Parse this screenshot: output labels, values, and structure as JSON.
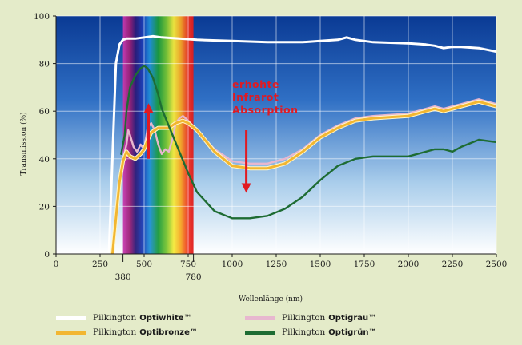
{
  "chart_data": {
    "type": "line",
    "title": "",
    "xlabel": "Wellenlänge (nm)",
    "ylabel": "Transmission (%)",
    "xlim": [
      0,
      2500
    ],
    "ylim": [
      0,
      100
    ],
    "x_ticks": [
      "0",
      "250",
      "500",
      "750",
      "1000",
      "1250",
      "1500",
      "1750",
      "2000",
      "2250",
      "2500"
    ],
    "x_ticks_extra": [
      "380",
      "780"
    ],
    "y_ticks": [
      "0",
      "20",
      "40",
      "60",
      "80",
      "100"
    ],
    "grid": true,
    "visible_spectrum_nm": [
      380,
      780
    ],
    "annotation": {
      "lines": [
        "erhöhte",
        "Infrarot",
        "Absorption"
      ],
      "color": "#e11a22"
    },
    "legend_brand": "Pilkington",
    "series": [
      {
        "name": "Optiwhite™",
        "color": "#ffffff",
        "x": [
          300,
          320,
          340,
          360,
          380,
          400,
          450,
          500,
          550,
          600,
          700,
          800,
          1000,
          1200,
          1400,
          1500,
          1600,
          1650,
          1700,
          1800,
          2000,
          2100,
          2150,
          2200,
          2250,
          2300,
          2400,
          2500
        ],
        "y": [
          0,
          40,
          80,
          88,
          90,
          90.5,
          90.5,
          91,
          91.5,
          91,
          90.5,
          90,
          89.5,
          89,
          89,
          89.5,
          90,
          91,
          90,
          89,
          88.5,
          88,
          87.5,
          86.5,
          87,
          87,
          86.5,
          85
        ]
      },
      {
        "name": "Optigrau™",
        "color": "#e7b7cf",
        "x": [
          380,
          400,
          410,
          420,
          440,
          460,
          480,
          500,
          520,
          540,
          560,
          580,
          600,
          620,
          640,
          660,
          680,
          700,
          720,
          750,
          800,
          900,
          1000,
          1100,
          1200,
          1300,
          1400,
          1500,
          1600,
          1700,
          1800,
          2000,
          2100,
          2150,
          2200,
          2250,
          2300,
          2400,
          2500
        ],
        "y": [
          40,
          46,
          52,
          50,
          45,
          43,
          46,
          44,
          53,
          55,
          52,
          46,
          42,
          44,
          43,
          48,
          55,
          57,
          58,
          56,
          52,
          44,
          39,
          38,
          38,
          40,
          44,
          50,
          54,
          57,
          58,
          59,
          61,
          62,
          61,
          62,
          63,
          65,
          63
        ]
      },
      {
        "name": "Optibronze™",
        "color": "#f2b631",
        "x": [
          320,
          340,
          360,
          380,
          400,
          420,
          450,
          480,
          500,
          520,
          540,
          560,
          580,
          600,
          640,
          680,
          720,
          750,
          800,
          900,
          1000,
          1100,
          1200,
          1300,
          1400,
          1500,
          1600,
          1700,
          1800,
          2000,
          2100,
          2150,
          2200,
          2250,
          2300,
          2400,
          2500
        ],
        "y": [
          0,
          15,
          30,
          39,
          43,
          41,
          40,
          42,
          44,
          48,
          51,
          52,
          53,
          53,
          53,
          55,
          56,
          55,
          52,
          43,
          37,
          36,
          36,
          38,
          43,
          49,
          53,
          56,
          57,
          58,
          60,
          61,
          60,
          61,
          62,
          64,
          62
        ]
      },
      {
        "name": "Optigrün™",
        "color": "#1e6c33",
        "x": [
          370,
          390,
          400,
          420,
          450,
          480,
          500,
          520,
          550,
          580,
          600,
          650,
          700,
          750,
          800,
          900,
          1000,
          1100,
          1200,
          1300,
          1400,
          1500,
          1600,
          1700,
          1800,
          1900,
          2000,
          2100,
          2150,
          2200,
          2250,
          2300,
          2400,
          2500
        ],
        "y": [
          42,
          50,
          60,
          70,
          75,
          78,
          79,
          78,
          74,
          67,
          61,
          52,
          43,
          34,
          26,
          18,
          15,
          15,
          16,
          19,
          24,
          31,
          37,
          40,
          41,
          41,
          41,
          43,
          44,
          44,
          43,
          45,
          48,
          47
        ]
      }
    ]
  }
}
